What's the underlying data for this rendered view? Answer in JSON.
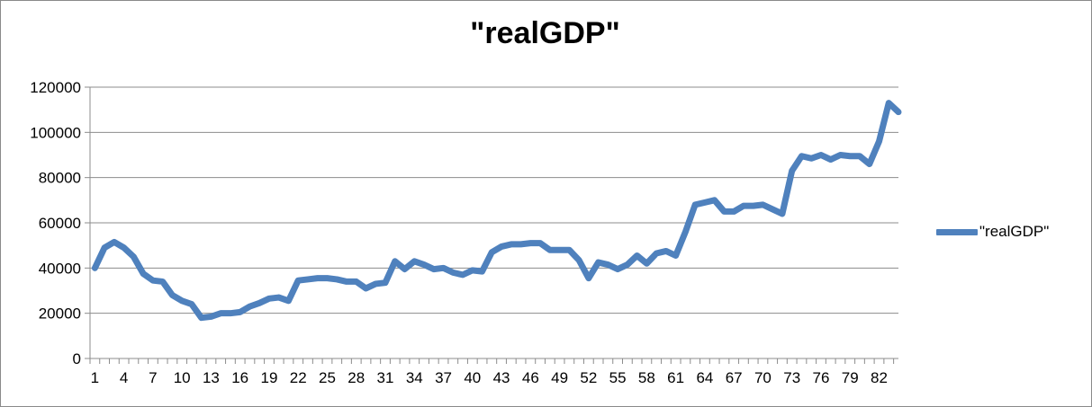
{
  "chart_data": {
    "type": "line",
    "title": "\"realGDP\"",
    "xlabel": "",
    "ylabel": "",
    "ylim": [
      0,
      120000
    ],
    "yticks": [
      "0",
      "20000",
      "40000",
      "60000",
      "80000",
      "100000",
      "120000"
    ],
    "xticks": [
      "1",
      "4",
      "7",
      "10",
      "13",
      "16",
      "19",
      "22",
      "25",
      "28",
      "31",
      "34",
      "37",
      "40",
      "43",
      "46",
      "49",
      "52",
      "55",
      "58",
      "61",
      "64",
      "67",
      "70",
      "73",
      "76",
      "79",
      "82"
    ],
    "grid": true,
    "legend_position": "right",
    "series": [
      {
        "name": "\"realGDP\"",
        "color": "#4F81BD",
        "x": [
          1,
          2,
          3,
          4,
          5,
          6,
          7,
          8,
          9,
          10,
          11,
          12,
          13,
          14,
          15,
          16,
          17,
          18,
          19,
          20,
          21,
          22,
          23,
          24,
          25,
          26,
          27,
          28,
          29,
          30,
          31,
          32,
          33,
          34,
          35,
          36,
          37,
          38,
          39,
          40,
          41,
          42,
          43,
          44,
          45,
          46,
          47,
          48,
          49,
          50,
          51,
          52,
          53,
          54,
          55,
          56,
          57,
          58,
          59,
          60,
          61,
          62,
          63,
          64,
          65,
          66,
          67,
          68,
          69,
          70,
          71,
          72,
          73,
          74,
          75,
          76,
          77,
          78,
          79,
          80,
          81,
          82,
          83,
          84
        ],
        "values": [
          40000,
          49000,
          51500,
          49000,
          45000,
          37500,
          34500,
          34000,
          28000,
          25500,
          24000,
          18000,
          18500,
          20000,
          20000,
          20500,
          23000,
          24500,
          26500,
          27000,
          25500,
          34500,
          35000,
          35500,
          35500,
          35000,
          34000,
          34000,
          31000,
          33000,
          33500,
          43000,
          39500,
          43000,
          41500,
          39500,
          40000,
          38000,
          37000,
          39000,
          38500,
          47000,
          49500,
          50500,
          50500,
          51000,
          51000,
          48000,
          48000,
          48000,
          43500,
          35500,
          42500,
          41500,
          39500,
          41500,
          45500,
          42000,
          46500,
          47500,
          45500,
          56000,
          68000,
          69000,
          70000,
          65000,
          65000,
          67500,
          67500,
          68000,
          66000,
          64000,
          83000,
          89500,
          88500,
          90000,
          88000,
          90000,
          89500,
          89500,
          86000,
          96000,
          113000,
          109000
        ]
      }
    ]
  }
}
